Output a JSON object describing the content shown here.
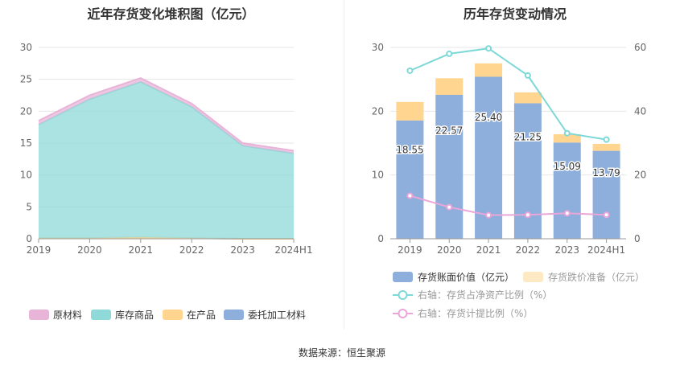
{
  "left_title": "近年存货变化堆积图（亿元）",
  "right_title": "历年存货变动情况",
  "source": "数据来源：恒生聚源",
  "colors": {
    "raw_material": "#e8b4d8",
    "finished_goods": "#8fd9d9",
    "wip": "#ffd58f",
    "consigned": "#8eaedb",
    "book_value": "#8eaedb",
    "impairment": "#ffd58f",
    "ratio_line": "#7dd8d8",
    "provision_line": "#eaa6d8",
    "grid": "#e6e6e6",
    "axis_text": "#666666"
  },
  "chart_data": [
    {
      "type": "area",
      "title": "近年存货变化堆积图（亿元）",
      "categories": [
        "2019",
        "2020",
        "2021",
        "2022",
        "2023",
        "2024H1"
      ],
      "ylim": [
        0,
        30
      ],
      "yticks": [
        0,
        5,
        10,
        15,
        20,
        25,
        30
      ],
      "stacked": true,
      "legend_position": "bottom",
      "grid": true,
      "series": [
        {
          "name": "委托加工材料",
          "key": "consigned",
          "values": [
            0.1,
            0.1,
            0.2,
            0.1,
            0.0,
            0.0
          ]
        },
        {
          "name": "在产品",
          "key": "wip",
          "values": [
            0.0,
            0.0,
            0.0,
            0.0,
            0.0,
            0.0
          ]
        },
        {
          "name": "库存商品",
          "key": "finished_goods",
          "values": [
            17.8,
            21.8,
            24.4,
            20.6,
            14.6,
            13.4
          ]
        },
        {
          "name": "原材料",
          "key": "raw_material",
          "values": [
            0.6,
            0.6,
            0.6,
            0.5,
            0.4,
            0.4
          ]
        }
      ],
      "legend_order": [
        "原材料",
        "库存商品",
        "在产品",
        "委托加工材料"
      ]
    },
    {
      "type": "bar",
      "title": "历年存货变动情况",
      "categories": [
        "2019",
        "2020",
        "2021",
        "2022",
        "2023",
        "2024H1"
      ],
      "ylim": [
        0,
        30
      ],
      "yticks": [
        0,
        10,
        20,
        30
      ],
      "y2lim": [
        0,
        60
      ],
      "y2ticks": [
        0,
        20,
        40,
        60
      ],
      "stacked": true,
      "legend_position": "bottom",
      "grid": true,
      "series": [
        {
          "name": "存货账面价值（亿元）",
          "key": "book_value",
          "values": [
            18.55,
            22.57,
            25.4,
            21.25,
            15.09,
            13.79
          ],
          "labels": [
            "18.55",
            "22.57",
            "25.40",
            "21.25",
            "15.09",
            "13.79"
          ]
        },
        {
          "name": "存货跌价准备（亿元）",
          "key": "impairment",
          "values": [
            2.9,
            2.6,
            2.1,
            1.7,
            1.3,
            1.1
          ]
        }
      ],
      "lines": [
        {
          "name": "右轴：存货占净资产比例（%）",
          "key": "ratio_line",
          "axis": "right",
          "values": [
            52.7,
            58.0,
            59.7,
            51.2,
            33.1,
            31.1
          ]
        },
        {
          "name": "右轴：存货计提比例（%）",
          "key": "provision_line",
          "axis": "right",
          "values": [
            13.5,
            9.9,
            7.4,
            7.5,
            8.0,
            7.5
          ]
        }
      ]
    }
  ]
}
